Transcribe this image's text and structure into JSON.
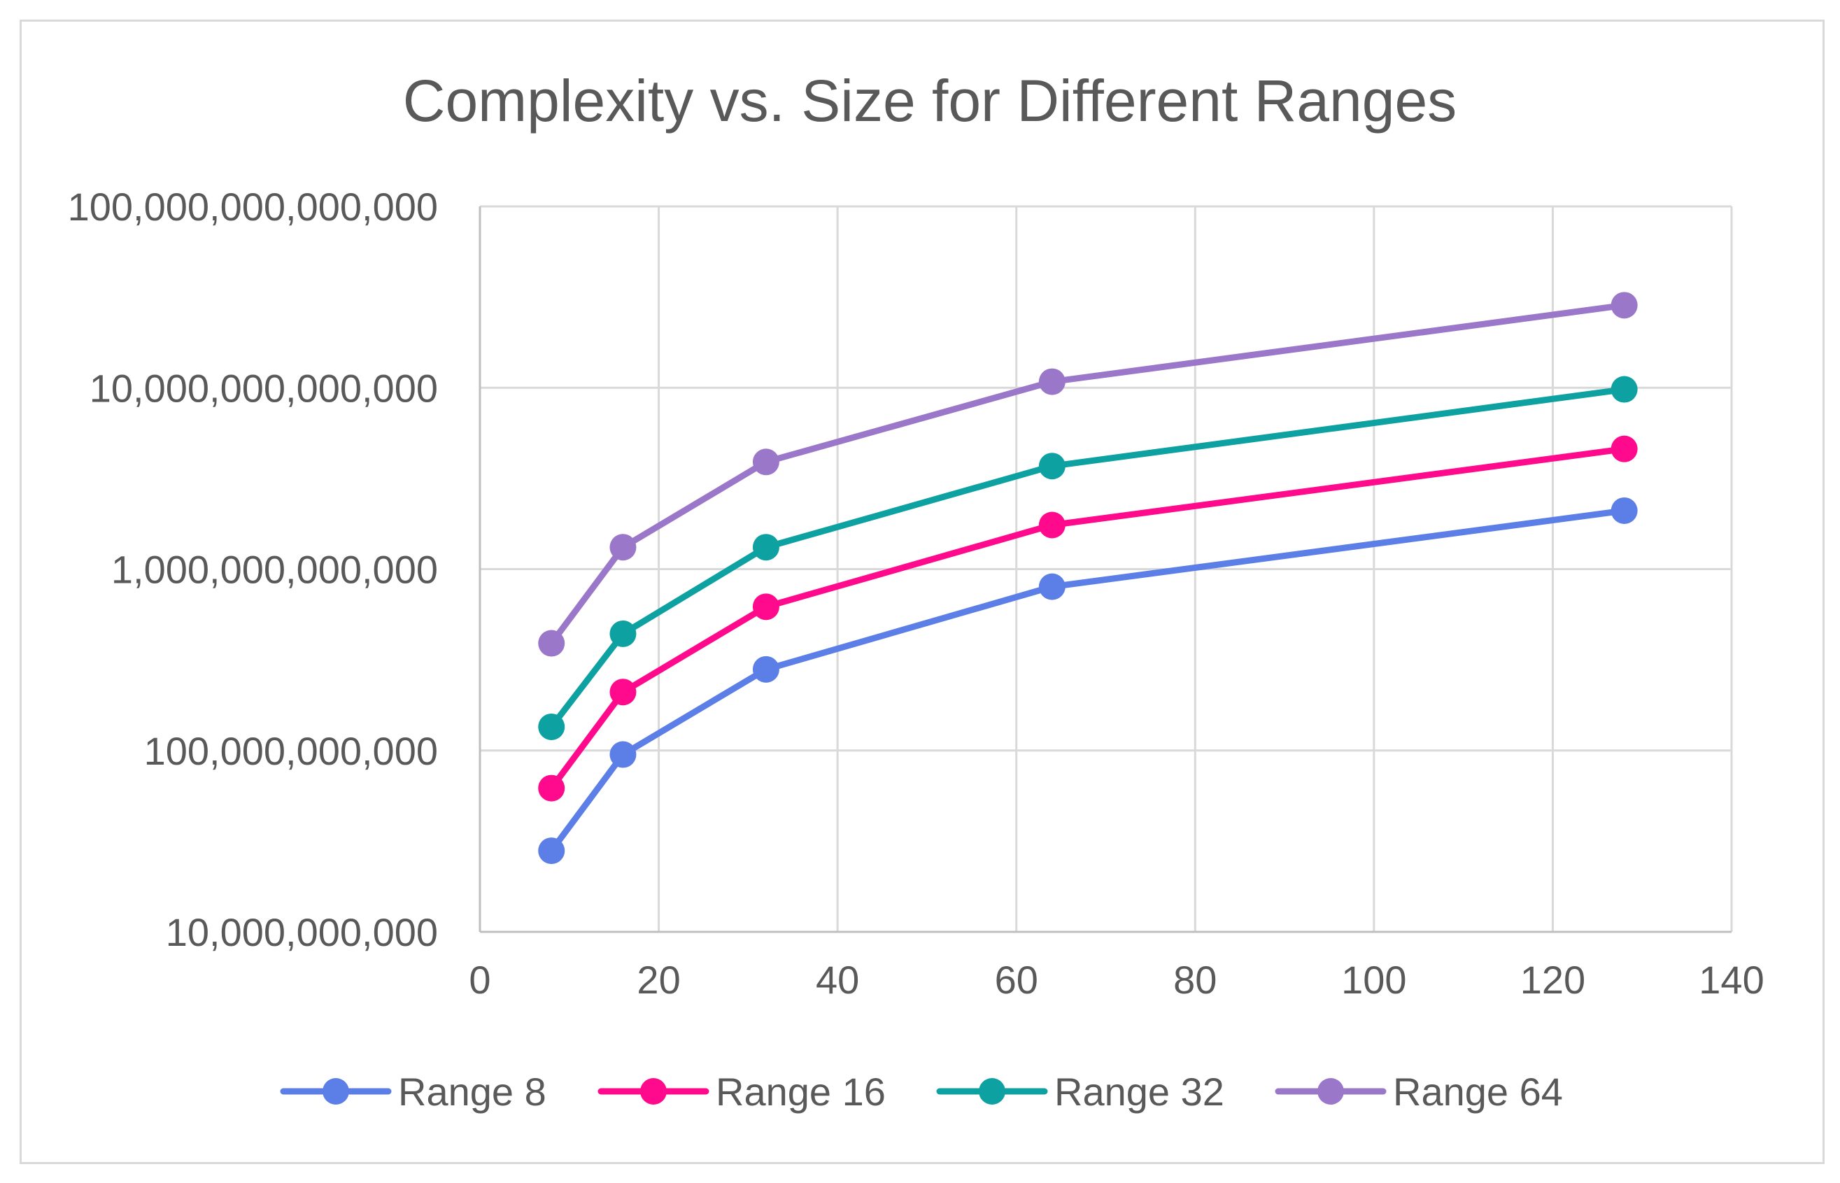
{
  "chart_data": {
    "type": "line",
    "title": "Complexity vs. Size for Different Ranges",
    "xlabel": "",
    "ylabel": "",
    "xscale": "linear",
    "yscale": "log",
    "xlim": [
      0,
      140
    ],
    "ylim": [
      10000000000,
      100000000000000
    ],
    "grid": true,
    "legend_position": "bottom",
    "x_ticks": [
      0,
      20,
      40,
      60,
      80,
      100,
      120,
      140
    ],
    "x_tick_labels": [
      "0",
      "20",
      "40",
      "60",
      "80",
      "100",
      "120",
      "140"
    ],
    "y_ticks": [
      10000000000,
      100000000000,
      1000000000000,
      10000000000000,
      100000000000000
    ],
    "y_tick_labels": [
      "10,000,000,000",
      "100,000,000,000",
      "1,000,000,000,000",
      "10,000,000,000,000",
      "100,000,000,000,000"
    ],
    "x": [
      8,
      16,
      32,
      64,
      128
    ],
    "series": [
      {
        "name": "Range 8",
        "color": "#5b7fe6",
        "values": [
          28000000000,
          95000000000,
          280000000000,
          800000000000,
          2100000000000
        ]
      },
      {
        "name": "Range 16",
        "color": "#ff0a8c",
        "values": [
          62000000000,
          210000000000,
          620000000000,
          1750000000000,
          4600000000000
        ]
      },
      {
        "name": "Range 32",
        "color": "#0ea1a1",
        "values": [
          135000000000,
          440000000000,
          1320000000000,
          3700000000000,
          9800000000000
        ]
      },
      {
        "name": "Range 64",
        "color": "#9b77c9",
        "values": [
          390000000000,
          1320000000000,
          3900000000000,
          10800000000000,
          28500000000000
        ]
      }
    ]
  }
}
